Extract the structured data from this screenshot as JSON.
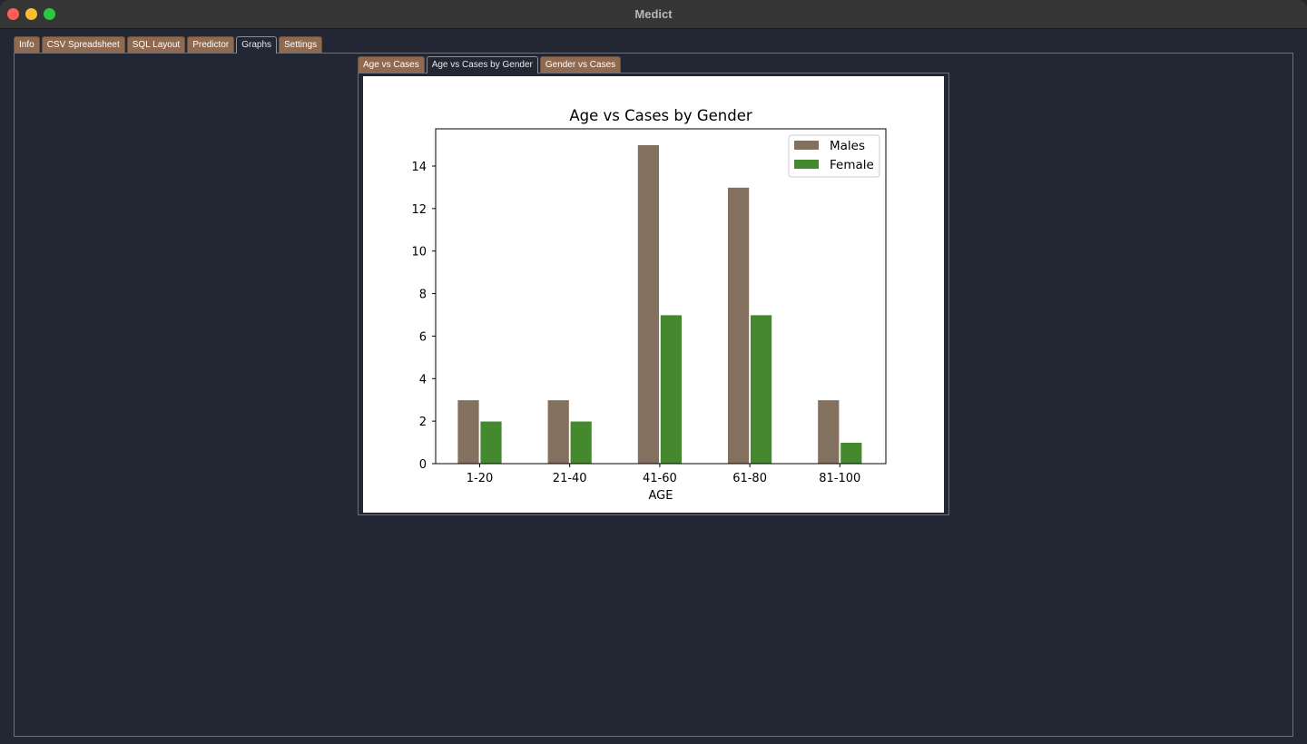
{
  "window": {
    "title": "Medict"
  },
  "tabs": [
    {
      "label": "Info",
      "active": false
    },
    {
      "label": "CSV Spreadsheet",
      "active": false
    },
    {
      "label": "SQL Layout",
      "active": false
    },
    {
      "label": "Predictor",
      "active": false
    },
    {
      "label": "Graphs",
      "active": true
    },
    {
      "label": "Settings",
      "active": false
    }
  ],
  "subtabs": [
    {
      "label": "Age vs Cases",
      "active": false
    },
    {
      "label": "Age vs Cases by Gender",
      "active": true
    },
    {
      "label": "Gender vs Cases",
      "active": false
    }
  ],
  "colors": {
    "tab_inactive": "#8f6a50",
    "males": "#84705f",
    "female": "#45892e"
  },
  "chart_data": {
    "type": "bar",
    "title": "Age vs Cases by Gender",
    "xlabel": "AGE",
    "ylabel": "",
    "categories": [
      "1-20",
      "21-40",
      "41-60",
      "61-80",
      "81-100"
    ],
    "series": [
      {
        "name": "Males",
        "values": [
          3,
          3,
          15,
          13,
          3
        ]
      },
      {
        "name": "Female",
        "values": [
          2,
          2,
          7,
          7,
          1
        ]
      }
    ],
    "ylim": [
      0,
      15.75
    ],
    "yticks": [
      0,
      2,
      4,
      6,
      8,
      10,
      12,
      14
    ],
    "legend": "top-right",
    "grid": false
  }
}
